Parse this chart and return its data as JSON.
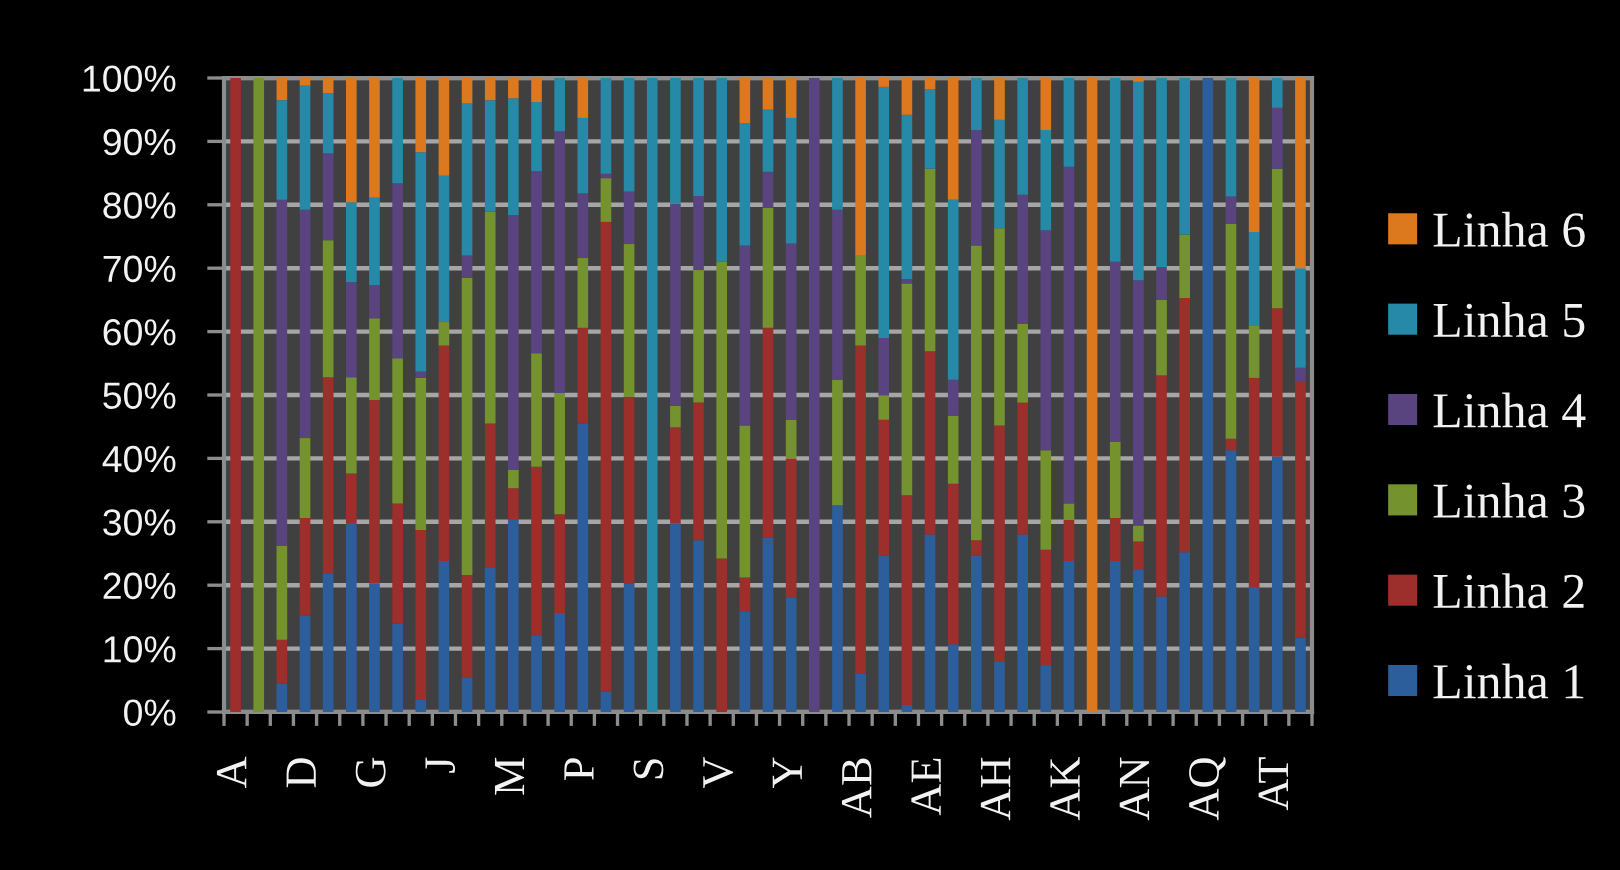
{
  "chart_data": {
    "type": "bar",
    "stacked": true,
    "categories": [
      "A",
      null,
      null,
      "D",
      null,
      null,
      "G",
      null,
      null,
      "J",
      null,
      null,
      "M",
      null,
      null,
      "P",
      null,
      null,
      "S",
      null,
      null,
      "V",
      null,
      null,
      "Y",
      null,
      null,
      "AB",
      null,
      null,
      "AE",
      null,
      null,
      "AH",
      null,
      null,
      "AK",
      null,
      null,
      "AN",
      null,
      null,
      "AQ",
      null,
      null,
      "AT",
      null
    ],
    "series": [
      {
        "name": "Linha 1",
        "color": "#2d5e9c",
        "values": [
          null,
          null,
          4.5,
          15.2,
          21.9,
          29.8,
          20.3,
          13.9,
          1.9,
          23.8,
          5.4,
          22.7,
          30.3,
          12.1,
          15.6,
          45.5,
          3.2,
          20.2,
          null,
          29.7,
          27.1,
          null,
          15.9,
          27.5,
          18.1,
          null,
          32.6,
          6.1,
          24.7,
          1.1,
          28.0,
          10.7,
          24.7,
          7.9,
          28.0,
          7.4,
          23.8,
          null,
          23.8,
          22.4,
          18.2,
          25.2,
          100,
          41.3,
          19.6,
          40.3,
          11.7
        ]
      },
      {
        "name": "Linha 2",
        "color": "#9c2e2b",
        "values": [
          100,
          null,
          6.9,
          15.4,
          30.9,
          7.8,
          28.9,
          19.0,
          26.8,
          34.0,
          16.2,
          22.8,
          5.0,
          26.6,
          15.6,
          15.1,
          74.1,
          29.5,
          null,
          15.2,
          21.7,
          24.2,
          5.3,
          33.1,
          21.9,
          null,
          null,
          51.7,
          21.4,
          33.1,
          28.9,
          25.3,
          2.4,
          37.3,
          20.8,
          18.2,
          6.5,
          null,
          6.8,
          4.5,
          34.9,
          40.1,
          null,
          1.8,
          33.1,
          23.4,
          40.5
        ]
      },
      {
        "name": "Linha 3",
        "color": "#74932f",
        "values": [
          null,
          100,
          14.8,
          12.6,
          21.6,
          15.2,
          12.9,
          22.9,
          24.0,
          3.7,
          46.9,
          33.4,
          2.9,
          17.9,
          19.1,
          11.0,
          6.9,
          24.1,
          null,
          3.4,
          20.9,
          46.8,
          24.0,
          18.9,
          6.1,
          null,
          19.8,
          14.3,
          3.8,
          33.4,
          28.8,
          10.7,
          46.5,
          31.1,
          12.4,
          15.7,
          2.6,
          null,
          12.0,
          2.5,
          11.9,
          10.0,
          null,
          33.9,
          8.3,
          22.0,
          null
        ]
      },
      {
        "name": "Linha 4",
        "color": "#5a4480",
        "values": [
          null,
          null,
          54.6,
          36.0,
          13.7,
          15.0,
          5.2,
          27.6,
          1.0,
          null,
          3.5,
          null,
          40.2,
          28.7,
          41.3,
          10.2,
          0.7,
          8.3,
          null,
          31.9,
          11.7,
          null,
          28.4,
          5.7,
          27.8,
          100,
          26.8,
          null,
          9.1,
          0.7,
          null,
          5.7,
          18.2,
          null,
          20.4,
          34.7,
          53.1,
          null,
          28.4,
          38.7,
          5.2,
          null,
          null,
          4.3,
          null,
          9.6,
          2.1
        ]
      },
      {
        "name": "Linha 5",
        "color": "#2689a8",
        "values": [
          null,
          null,
          15.7,
          19.6,
          9.5,
          12.6,
          13.8,
          16.6,
          34.6,
          23.1,
          24.0,
          17.6,
          18.4,
          10.9,
          8.4,
          11.9,
          15.1,
          17.9,
          100,
          19.8,
          18.6,
          29.0,
          19.3,
          9.8,
          19.8,
          null,
          20.8,
          null,
          39.6,
          25.9,
          12.5,
          28.4,
          8.2,
          17.1,
          18.4,
          15.8,
          14.0,
          null,
          29.0,
          31.3,
          29.8,
          24.7,
          null,
          18.7,
          14.7,
          4.7,
          15.7
        ]
      },
      {
        "name": "Linha 6",
        "color": "#dc781e",
        "values": [
          null,
          null,
          3.5,
          1.2,
          2.4,
          19.6,
          18.9,
          null,
          11.7,
          15.4,
          4.0,
          3.5,
          3.2,
          3.8,
          null,
          6.3,
          null,
          null,
          null,
          null,
          null,
          null,
          7.1,
          5.0,
          6.3,
          null,
          null,
          27.9,
          1.4,
          5.8,
          1.8,
          19.2,
          null,
          6.6,
          null,
          8.2,
          null,
          100,
          null,
          0.6,
          null,
          null,
          null,
          null,
          24.3,
          null,
          30.0
        ]
      }
    ],
    "ylim": [
      0,
      100
    ],
    "yticks": [
      {
        "value": 0,
        "label": "0%"
      },
      {
        "value": 10,
        "label": "10%"
      },
      {
        "value": 20,
        "label": "20%"
      },
      {
        "value": 30,
        "label": "30%"
      },
      {
        "value": 40,
        "label": "40%"
      },
      {
        "value": 50,
        "label": "50%"
      },
      {
        "value": 60,
        "label": "60%"
      },
      {
        "value": 70,
        "label": "70%"
      },
      {
        "value": 80,
        "label": "80%"
      },
      {
        "value": 90,
        "label": "90%"
      },
      {
        "value": 100,
        "label": "100%"
      }
    ],
    "grid": "y",
    "legend": "right"
  }
}
